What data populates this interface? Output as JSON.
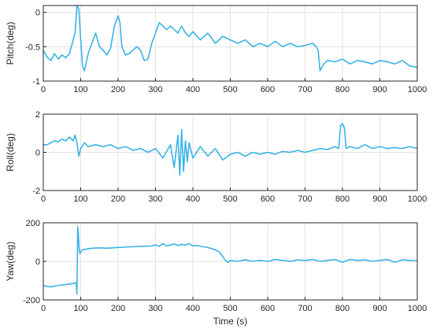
{
  "chart_data": [
    {
      "type": "line",
      "ylabel": "Pitch(deg)",
      "xlabel": "",
      "xlim": [
        0,
        1000
      ],
      "ylim": [
        -1,
        0.1
      ],
      "xticks": [
        "0",
        "100",
        "200",
        "300",
        "400",
        "500",
        "600",
        "700",
        "800",
        "900",
        "1000"
      ],
      "yticks": [
        "-1",
        "-0.5",
        "0"
      ],
      "ytick_values": [
        -1,
        -0.5,
        0
      ],
      "grid": true,
      "color": "#3bb4e6",
      "series": [
        {
          "x": [
            0,
            10,
            20,
            30,
            40,
            50,
            60,
            70,
            80,
            85,
            90,
            95,
            100,
            105,
            110,
            120,
            130,
            140,
            150,
            160,
            170,
            180,
            190,
            200,
            205,
            210,
            220,
            230,
            240,
            250,
            260,
            270,
            280,
            290,
            300,
            310,
            320,
            330,
            340,
            350,
            360,
            370,
            380,
            390,
            400,
            420,
            440,
            460,
            480,
            500,
            520,
            540,
            560,
            580,
            600,
            620,
            640,
            660,
            680,
            700,
            720,
            730,
            735,
            740,
            750,
            760,
            780,
            800,
            820,
            840,
            860,
            880,
            900,
            920,
            940,
            960,
            980,
            1000
          ],
          "y": [
            -0.55,
            -0.65,
            -0.7,
            -0.6,
            -0.68,
            -0.62,
            -0.66,
            -0.6,
            -0.4,
            -0.3,
            0.1,
            0.05,
            -0.4,
            -0.78,
            -0.85,
            -0.6,
            -0.45,
            -0.3,
            -0.5,
            -0.55,
            -0.62,
            -0.52,
            -0.2,
            -0.05,
            -0.15,
            -0.5,
            -0.62,
            -0.6,
            -0.55,
            -0.5,
            -0.55,
            -0.7,
            -0.68,
            -0.45,
            -0.3,
            -0.15,
            -0.2,
            -0.25,
            -0.2,
            -0.25,
            -0.3,
            -0.2,
            -0.3,
            -0.35,
            -0.28,
            -0.4,
            -0.3,
            -0.45,
            -0.35,
            -0.4,
            -0.45,
            -0.4,
            -0.5,
            -0.45,
            -0.5,
            -0.42,
            -0.5,
            -0.45,
            -0.5,
            -0.48,
            -0.45,
            -0.5,
            -0.55,
            -0.85,
            -0.75,
            -0.7,
            -0.72,
            -0.68,
            -0.75,
            -0.7,
            -0.72,
            -0.75,
            -0.7,
            -0.72,
            -0.75,
            -0.7,
            -0.78,
            -0.8
          ]
        }
      ]
    },
    {
      "type": "line",
      "ylabel": "Roll(deg)",
      "xlabel": "",
      "xlim": [
        0,
        1000
      ],
      "ylim": [
        -2,
        2
      ],
      "xticks": [
        "0",
        "100",
        "200",
        "300",
        "400",
        "500",
        "600",
        "700",
        "800",
        "900",
        "1000"
      ],
      "yticks": [
        "-2",
        "0",
        "2"
      ],
      "ytick_values": [
        -2,
        0,
        2
      ],
      "grid": true,
      "color": "#3bb4e6",
      "series": [
        {
          "x": [
            0,
            10,
            20,
            30,
            40,
            50,
            60,
            70,
            80,
            85,
            90,
            95,
            100,
            110,
            120,
            140,
            160,
            180,
            200,
            220,
            240,
            260,
            280,
            300,
            320,
            340,
            350,
            360,
            365,
            370,
            375,
            380,
            385,
            390,
            400,
            420,
            440,
            460,
            480,
            500,
            520,
            540,
            560,
            580,
            600,
            620,
            640,
            660,
            680,
            700,
            720,
            740,
            760,
            780,
            790,
            795,
            800,
            805,
            810,
            820,
            840,
            860,
            880,
            900,
            920,
            940,
            960,
            980,
            1000
          ],
          "y": [
            0.4,
            0.4,
            0.5,
            0.6,
            0.55,
            0.7,
            0.6,
            0.8,
            0.6,
            0.9,
            0.5,
            -0.2,
            0.2,
            0.5,
            0.3,
            0.4,
            0.3,
            0.4,
            0.2,
            0.3,
            0.1,
            0.2,
            0.0,
            0.2,
            -0.3,
            0.4,
            -0.8,
            0.9,
            -1.2,
            1.2,
            -1.0,
            0.6,
            -0.5,
            0.5,
            -0.3,
            0.3,
            -0.2,
            0.2,
            -0.4,
            -0.1,
            0.0,
            -0.2,
            0.0,
            -0.1,
            0.0,
            -0.1,
            0.05,
            0.0,
            0.1,
            0.0,
            0.1,
            0.2,
            0.15,
            0.3,
            0.2,
            1.4,
            1.5,
            1.3,
            0.2,
            0.3,
            0.2,
            0.4,
            0.2,
            0.3,
            0.2,
            0.25,
            0.2,
            0.3,
            0.2
          ]
        }
      ]
    },
    {
      "type": "line",
      "ylabel": "Yaw(deg)",
      "xlabel": "Time (s)",
      "xlim": [
        0,
        1000
      ],
      "ylim": [
        -200,
        200
      ],
      "xticks": [
        "0",
        "100",
        "200",
        "300",
        "400",
        "500",
        "600",
        "700",
        "800",
        "900",
        "1000"
      ],
      "yticks": [
        "-200",
        "0",
        "200"
      ],
      "ytick_values": [
        -200,
        0,
        200
      ],
      "grid": true,
      "color": "#3bb4e6",
      "series": [
        {
          "x": [
            0,
            10,
            20,
            40,
            60,
            80,
            88,
            90,
            92,
            94,
            96,
            98,
            100,
            105,
            110,
            130,
            150,
            170,
            200,
            230,
            260,
            290,
            300,
            310,
            320,
            330,
            340,
            350,
            360,
            370,
            380,
            390,
            400,
            410,
            420,
            440,
            460,
            470,
            480,
            485,
            490,
            495,
            500,
            520,
            540,
            560,
            580,
            600,
            620,
            640,
            660,
            680,
            700,
            720,
            740,
            760,
            780,
            800,
            820,
            840,
            860,
            880,
            900,
            920,
            940,
            960,
            980,
            1000
          ],
          "y": [
            -125,
            -130,
            -132,
            -125,
            -120,
            -115,
            -110,
            -170,
            180,
            140,
            60,
            40,
            50,
            60,
            62,
            68,
            70,
            68,
            72,
            75,
            78,
            80,
            85,
            78,
            92,
            80,
            85,
            90,
            82,
            88,
            85,
            92,
            80,
            82,
            78,
            72,
            60,
            50,
            25,
            10,
            0,
            -5,
            5,
            0,
            8,
            0,
            5,
            0,
            10,
            5,
            0,
            8,
            5,
            10,
            0,
            5,
            10,
            -5,
            10,
            5,
            8,
            0,
            5,
            10,
            -5,
            8,
            5,
            3
          ]
        }
      ]
    }
  ]
}
